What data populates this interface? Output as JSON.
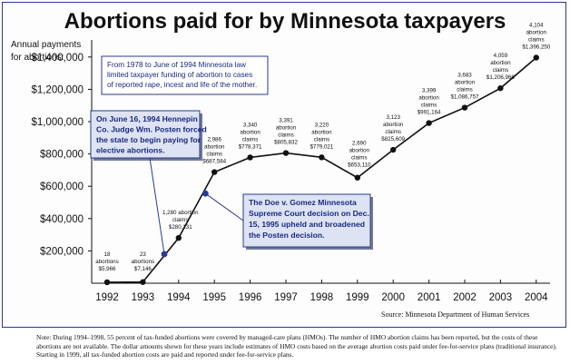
{
  "title": "Abortions paid for by Minnesota taxpayers",
  "ylabel_lines": [
    "Annual payments",
    "for abortions:"
  ],
  "source": "Source: Minnesota Department of Human Services",
  "note": "Note: During 1994–1998, 55 percent of tax-funded abortions were covered by managed-care plans (HMOs). The number of HMO abortion claims has been reported, but the costs of these abortions are not available. The dollar amounts shown for these years include estimates of HMO costs based on the average abortion costs paid under fee-for-service plans (traditional insurance). Starting in 1999, all tax-funded abortion costs are paid and reported under fee-for-service plans.",
  "colors": {
    "line": "#111111",
    "point": "#111111",
    "event_point": "#2a3a9a",
    "box_fill": "#dde3f3",
    "box_border": "#2a3a8a",
    "blue_text": "#1a2a80"
  },
  "chart_data": {
    "type": "line",
    "title": "Abortions paid for by Minnesota taxpayers",
    "ylabel": "Annual payments for abortions:",
    "xlabel": "",
    "ylim": [
      0,
      1500000
    ],
    "yticks": [
      200000,
      400000,
      600000,
      800000,
      1000000,
      1200000,
      1400000
    ],
    "ytick_labels": [
      "$200,000",
      "$400,000",
      "$600,000",
      "$800,000",
      "$1,000,000",
      "$1,200,000",
      "$1,400,000"
    ],
    "xticks": [
      1992,
      1993,
      1994,
      1995,
      1996,
      1997,
      1998,
      1999,
      2000,
      2001,
      2002,
      2003,
      2004
    ],
    "grid": false,
    "points": [
      {
        "x": 1992,
        "y": 5966,
        "label": [
          "18",
          "abortions",
          "$5,966"
        ]
      },
      {
        "x": 1993,
        "y": 7146,
        "label": [
          "23",
          "abortions",
          "$7,146"
        ]
      },
      {
        "x": 1994,
        "y": 280131,
        "label": [
          "1,280 abortion",
          "claims",
          "$280,131"
        ]
      },
      {
        "x": 1995,
        "y": 687584,
        "label": [
          "2,986",
          "abortion",
          "claims",
          "$687,584"
        ]
      },
      {
        "x": 1996,
        "y": 778371,
        "label": [
          "3,340",
          "abortion",
          "claims",
          "$778,371"
        ]
      },
      {
        "x": 1997,
        "y": 805832,
        "label": [
          "3,391",
          "abortion",
          "claims",
          "$805,832"
        ]
      },
      {
        "x": 1998,
        "y": 779021,
        "label": [
          "3,220",
          "abortion",
          "claims",
          "$779,021"
        ]
      },
      {
        "x": 1999,
        "y": 653110,
        "label": [
          "2,690",
          "abortion",
          "claims",
          "$653,110"
        ]
      },
      {
        "x": 2000,
        "y": 825609,
        "label": [
          "3,123",
          "abortion",
          "claims",
          "$825,609"
        ]
      },
      {
        "x": 2001,
        "y": 991164,
        "label": [
          "3,399",
          "abortion",
          "claims",
          "$991,164"
        ]
      },
      {
        "x": 2002,
        "y": 1086757,
        "label": [
          "3,683",
          "abortion",
          "claims",
          "$1,086,757"
        ]
      },
      {
        "x": 2003,
        "y": 1206966,
        "label": [
          "4,059",
          "abortion",
          "claims",
          "$1,206,966"
        ]
      },
      {
        "x": 2004,
        "y": 1396250,
        "label": [
          "4,104",
          "abortion",
          "claims",
          "$1,396,250"
        ]
      }
    ],
    "event_points": [
      {
        "x": 1993.6,
        "y": 180000
      },
      {
        "x": 1994.75,
        "y": 555000
      }
    ],
    "annotations": [
      {
        "id": "law-note",
        "lines": [
          "From 1978 to June of 1994 Minnesota law",
          "limited taxpayer funding of abortion to cases",
          "of reported rape, incest and life of the mother."
        ]
      },
      {
        "id": "judge-note",
        "lines": [
          "On June 16, 1994 Hennepin",
          "Co. Judge Wm. Posten forced",
          "the state to begin paying for",
          "elective abortions."
        ]
      },
      {
        "id": "court-note",
        "lines": [
          "The Doe v. Gomez Minnesota",
          "Supreme Court decision on Dec.",
          "15, 1995 upheld and broadened",
          "the Posten decision."
        ]
      }
    ]
  }
}
